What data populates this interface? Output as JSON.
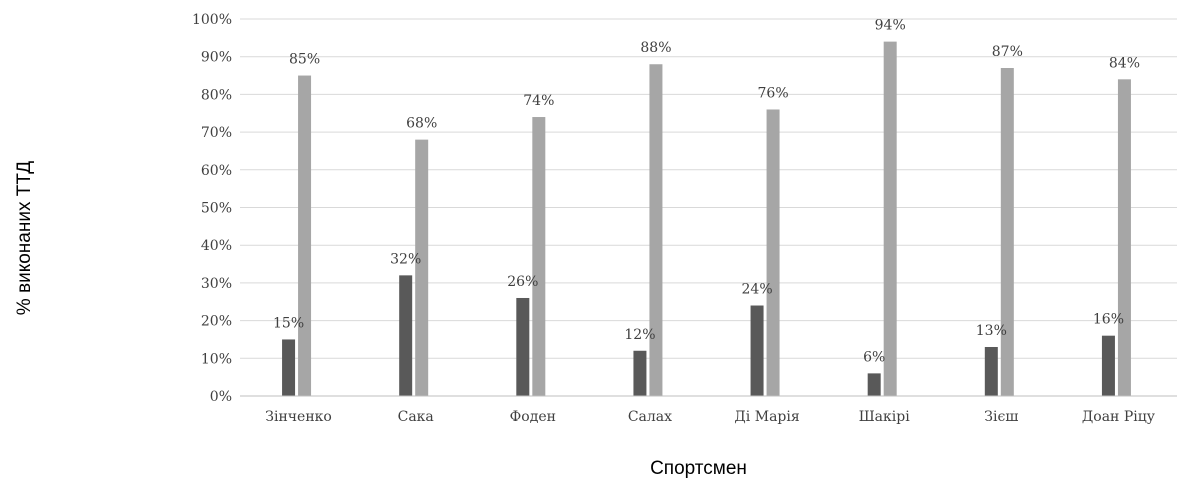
{
  "chart_data": {
    "type": "bar",
    "xlabel": "Спортсмен",
    "ylabel": "% виконаних ТТД",
    "categories": [
      "Зінченко",
      "Сака",
      "Фоден",
      "Салах",
      "Ді Марія",
      "Шакірі",
      "Зієш",
      "Доан Ріцу"
    ],
    "series": [
      {
        "values": [
          15,
          32,
          26,
          12,
          24,
          6,
          13,
          16
        ],
        "color": "#595959"
      },
      {
        "values": [
          85,
          68,
          74,
          88,
          76,
          94,
          87,
          84
        ],
        "color": "#a6a6a6"
      }
    ],
    "data_labels": [
      [
        "15%",
        "32%",
        "26%",
        "12%",
        "24%",
        "6%",
        "13%",
        "16%"
      ],
      [
        "85%",
        "68%",
        "74%",
        "88%",
        "76%",
        "94%",
        "87%",
        "84%"
      ]
    ],
    "yticks": [
      "0%",
      "10%",
      "20%",
      "30%",
      "40%",
      "50%",
      "60%",
      "70%",
      "80%",
      "90%",
      "100%"
    ],
    "ylim": [
      0,
      100
    ],
    "grid": true,
    "legend": "none"
  }
}
